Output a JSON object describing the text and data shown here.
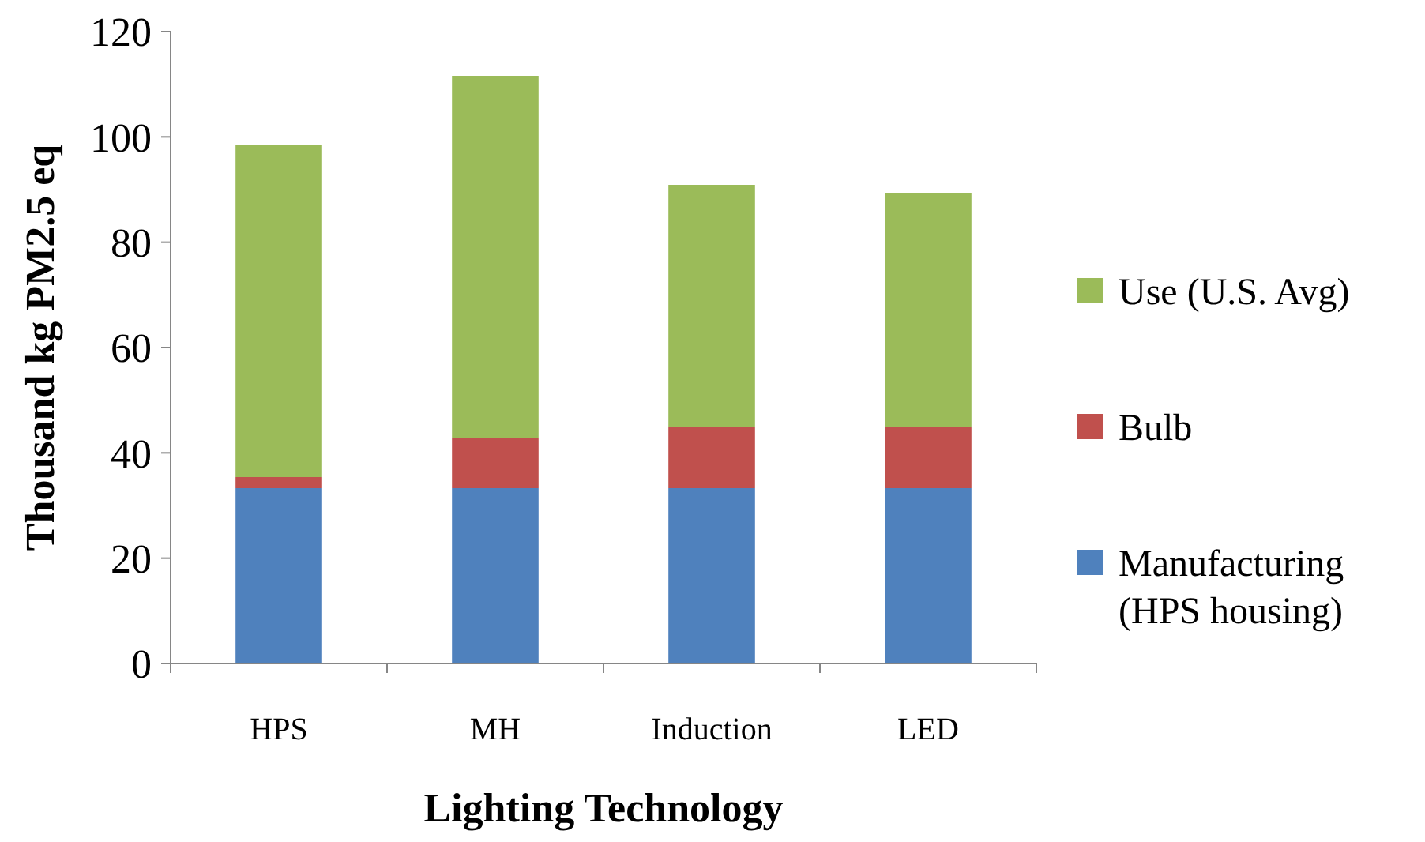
{
  "chart_data": {
    "type": "bar",
    "stacked": true,
    "xlabel": "Lighting Technology",
    "ylabel": "Thousand kg PM2.5 eq",
    "categories": [
      "HPS",
      "MH",
      "Induction",
      "LED"
    ],
    "series": [
      {
        "name": "Manufacturing (HPS housing)",
        "color": "#4f81bd",
        "values": [
          33.3,
          33.3,
          33.3,
          33.3
        ]
      },
      {
        "name": "Bulb",
        "color": "#c0504d",
        "values": [
          2.1,
          9.6,
          11.7,
          11.7
        ]
      },
      {
        "name": "Use (U.S. Avg)",
        "color": "#9bbb59",
        "values": [
          63.0,
          68.7,
          45.9,
          44.4
        ]
      }
    ],
    "ylim": [
      0,
      120
    ],
    "yticks": [
      0,
      20,
      40,
      60,
      80,
      100,
      120
    ],
    "grid": false,
    "legend": "right"
  }
}
